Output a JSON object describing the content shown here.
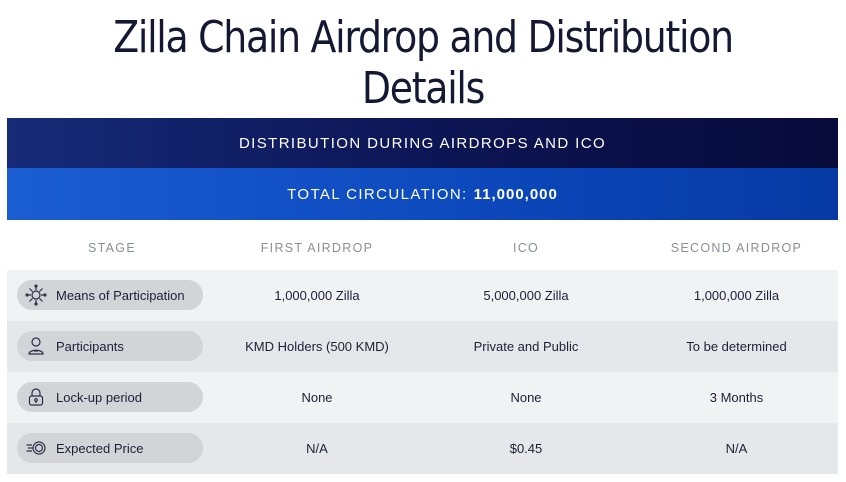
{
  "title": "Zilla Chain Airdrop and Distribution Details",
  "banner": {
    "heading": "DISTRIBUTION DURING AIRDROPS AND ICO",
    "circulation_label": "TOTAL CIRCULATION:",
    "circulation_value": "11,000,000"
  },
  "columns": [
    "STAGE",
    "FIRST AIRDROP",
    "ICO",
    "SECOND AIRDROP"
  ],
  "rows": [
    {
      "stage": "Means of Participation",
      "icon": "network-hub-icon",
      "first_airdrop": "1,000,000 Zilla",
      "ico": "5,000,000 Zilla",
      "second_airdrop": "1,000,000 Zilla"
    },
    {
      "stage": "Participants",
      "icon": "user-icon",
      "first_airdrop": "KMD Holders (500 KMD)",
      "ico": "Private and Public",
      "second_airdrop": "To be determined"
    },
    {
      "stage": "Lock-up period",
      "icon": "lock-icon",
      "first_airdrop": "None",
      "ico": "None",
      "second_airdrop": "3 Months"
    },
    {
      "stage": "Expected Price",
      "icon": "coin-speed-icon",
      "first_airdrop": "N/A",
      "ico": "$0.45",
      "second_airdrop": "N/A"
    }
  ],
  "colors": {
    "banner_dark": "#0c1452",
    "banner_blue": "#0c49bd",
    "row_light": "#f1f2f4",
    "row_dark": "#e6e7ea",
    "pill": "#d3d4d8"
  }
}
